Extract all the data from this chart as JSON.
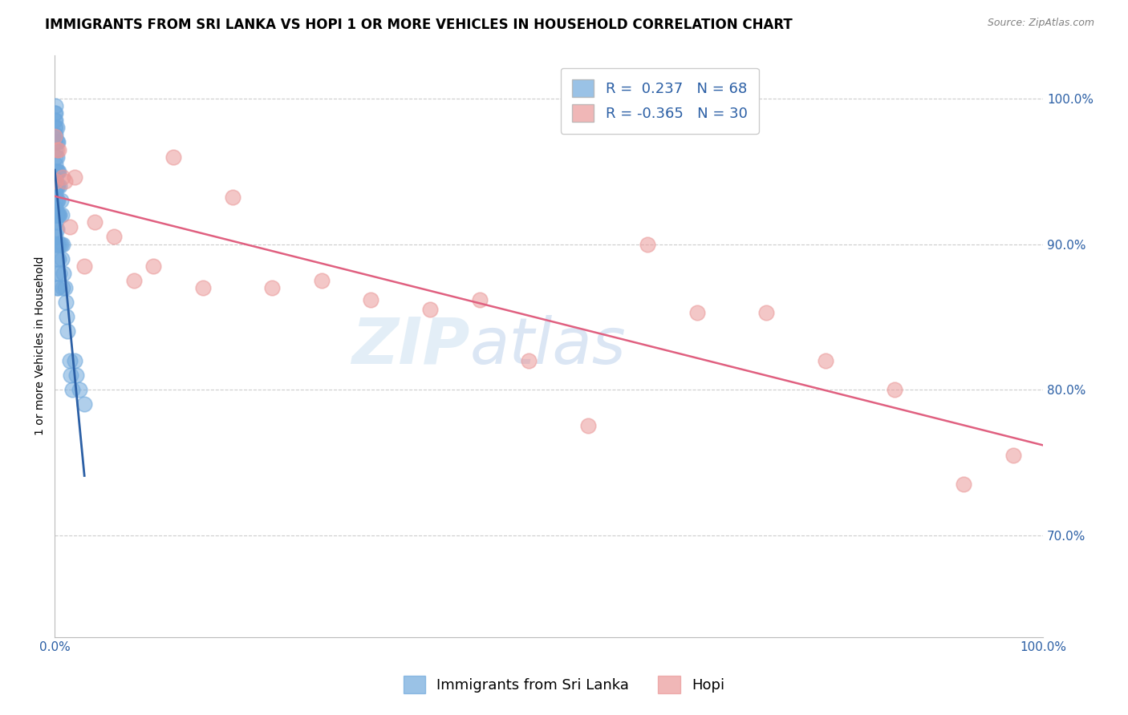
{
  "title": "IMMIGRANTS FROM SRI LANKA VS HOPI 1 OR MORE VEHICLES IN HOUSEHOLD CORRELATION CHART",
  "source": "Source: ZipAtlas.com",
  "ylabel": "1 or more Vehicles in Household",
  "x_tick_labels": [
    "0.0%",
    "100.0%"
  ],
  "y_tick_labels_right": [
    "100.0%",
    "90.0%",
    "80.0%",
    "70.0%"
  ],
  "y_tick_values_right": [
    1.0,
    0.9,
    0.8,
    0.7
  ],
  "legend_blue_label": "Immigrants from Sri Lanka",
  "legend_pink_label": "Hopi",
  "R_blue": 0.237,
  "N_blue": 68,
  "R_pink": -0.365,
  "N_pink": 30,
  "blue_color": "#6fa8dc",
  "pink_color": "#ea9999",
  "blue_line_color": "#2b5fa5",
  "pink_line_color": "#e06080",
  "blue_dots_x": [
    0.0,
    0.0,
    0.0,
    0.0,
    0.0,
    0.001,
    0.001,
    0.001,
    0.001,
    0.001,
    0.001,
    0.001,
    0.001,
    0.001,
    0.001,
    0.001,
    0.001,
    0.001,
    0.001,
    0.001,
    0.001,
    0.001,
    0.001,
    0.001,
    0.002,
    0.002,
    0.002,
    0.002,
    0.002,
    0.002,
    0.002,
    0.002,
    0.002,
    0.002,
    0.002,
    0.002,
    0.003,
    0.003,
    0.003,
    0.003,
    0.003,
    0.003,
    0.003,
    0.004,
    0.004,
    0.004,
    0.005,
    0.005,
    0.005,
    0.005,
    0.006,
    0.006,
    0.007,
    0.007,
    0.008,
    0.008,
    0.009,
    0.01,
    0.011,
    0.012,
    0.013,
    0.015,
    0.016,
    0.018,
    0.02,
    0.022,
    0.025,
    0.03
  ],
  "blue_dots_y": [
    0.99,
    0.985,
    0.98,
    0.975,
    0.97,
    0.995,
    0.99,
    0.985,
    0.98,
    0.975,
    0.97,
    0.965,
    0.96,
    0.955,
    0.95,
    0.945,
    0.94,
    0.935,
    0.93,
    0.925,
    0.92,
    0.915,
    0.91,
    0.905,
    0.98,
    0.97,
    0.96,
    0.95,
    0.94,
    0.93,
    0.92,
    0.91,
    0.9,
    0.89,
    0.88,
    0.87,
    0.97,
    0.95,
    0.94,
    0.93,
    0.92,
    0.9,
    0.87,
    0.95,
    0.92,
    0.89,
    0.94,
    0.92,
    0.9,
    0.88,
    0.93,
    0.9,
    0.92,
    0.89,
    0.9,
    0.87,
    0.88,
    0.87,
    0.86,
    0.85,
    0.84,
    0.82,
    0.81,
    0.8,
    0.82,
    0.81,
    0.8,
    0.79
  ],
  "pink_dots_x": [
    0.0,
    0.001,
    0.002,
    0.004,
    0.008,
    0.01,
    0.015,
    0.02,
    0.03,
    0.04,
    0.06,
    0.08,
    0.1,
    0.12,
    0.15,
    0.18,
    0.22,
    0.27,
    0.32,
    0.38,
    0.43,
    0.48,
    0.54,
    0.6,
    0.65,
    0.72,
    0.78,
    0.85,
    0.92,
    0.97
  ],
  "pink_dots_y": [
    0.974,
    0.943,
    0.965,
    0.965,
    0.946,
    0.943,
    0.912,
    0.946,
    0.885,
    0.915,
    0.905,
    0.875,
    0.885,
    0.96,
    0.87,
    0.932,
    0.87,
    0.875,
    0.862,
    0.855,
    0.862,
    0.82,
    0.775,
    0.9,
    0.853,
    0.853,
    0.82,
    0.8,
    0.735,
    0.755
  ],
  "watermark_left": "ZIP",
  "watermark_right": "atlas",
  "title_fontsize": 12,
  "axis_label_fontsize": 10,
  "tick_fontsize": 11,
  "legend_fontsize": 13,
  "background_color": "#ffffff",
  "grid_color": "#cccccc",
  "xlim": [
    0,
    1.0
  ],
  "ylim": [
    0.63,
    1.03
  ]
}
